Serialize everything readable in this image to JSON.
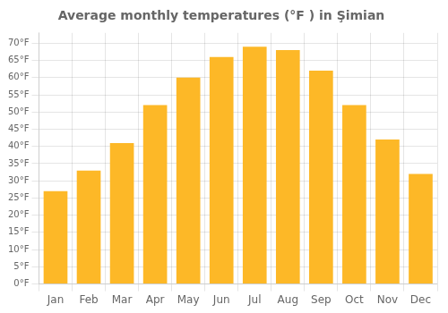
{
  "chart_data": {
    "type": "bar",
    "title": "Average monthly temperatures (°F ) in Şimian",
    "categories": [
      "Jan",
      "Feb",
      "Mar",
      "Apr",
      "May",
      "Jun",
      "Jul",
      "Aug",
      "Sep",
      "Oct",
      "Nov",
      "Dec"
    ],
    "values": [
      27,
      33,
      41,
      52,
      60,
      66,
      69,
      68,
      62,
      52,
      42,
      32
    ],
    "color": "#FDB827",
    "ylim": [
      0,
      73
    ],
    "yticks": [
      {
        "value": 0,
        "label": "0°F"
      },
      {
        "value": 5,
        "label": "5°F"
      },
      {
        "value": 10,
        "label": "10°F"
      },
      {
        "value": 15,
        "label": "15°F"
      },
      {
        "value": 20,
        "label": "20°F"
      },
      {
        "value": 25,
        "label": "25°F"
      },
      {
        "value": 30,
        "label": "30°F"
      },
      {
        "value": 35,
        "label": "35°F"
      },
      {
        "value": 40,
        "label": "40°F"
      },
      {
        "value": 45,
        "label": "45°F"
      },
      {
        "value": 50,
        "label": "50°F"
      },
      {
        "value": 55,
        "label": "55°F"
      },
      {
        "value": 60,
        "label": "60°F"
      },
      {
        "value": 65,
        "label": "65°F"
      },
      {
        "value": 70,
        "label": "70°F"
      }
    ],
    "grid": true
  }
}
